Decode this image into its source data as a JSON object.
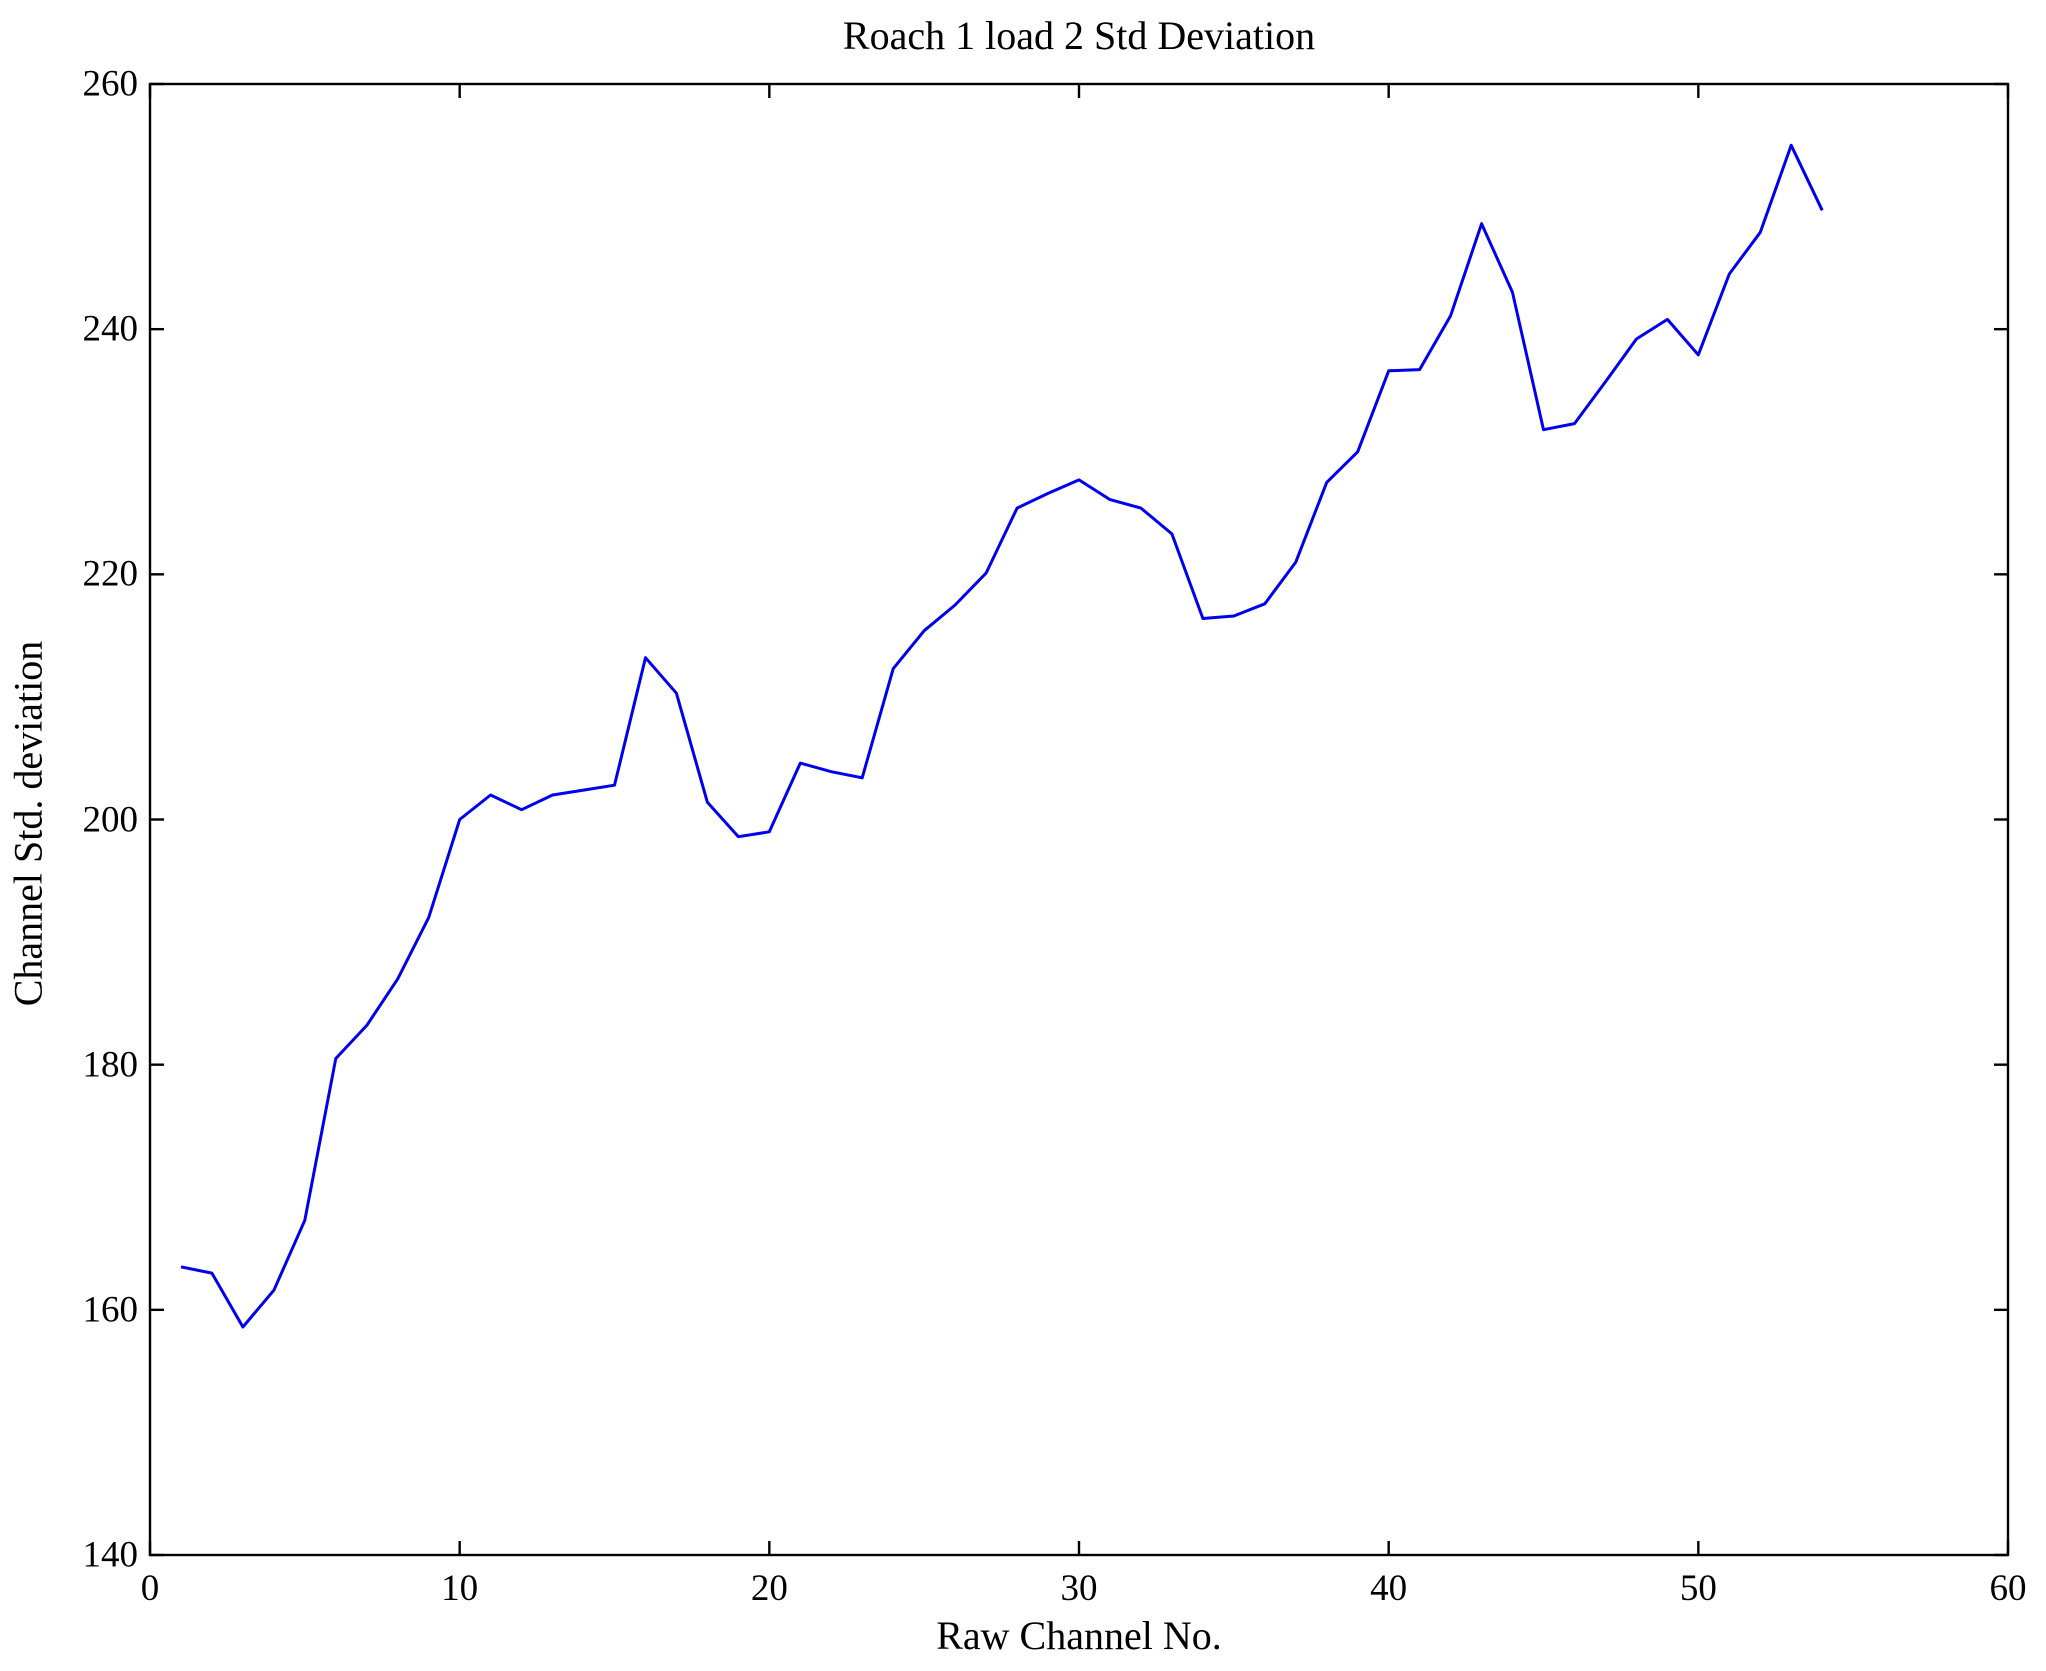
{
  "chart_data": {
    "type": "line",
    "title": "Roach 1 load 2 Std Deviation",
    "xlabel": "Raw Channel No.",
    "ylabel": "Channel Std. deviation",
    "xlim": [
      0,
      60
    ],
    "ylim": [
      140,
      260
    ],
    "xticks": [
      0,
      10,
      20,
      30,
      40,
      50,
      60
    ],
    "yticks": [
      140,
      160,
      180,
      200,
      220,
      240,
      260
    ],
    "grid": false,
    "legend": "none",
    "line_color": "#0000EE",
    "axis_color": "#000000",
    "series": [
      {
        "name": "Channel Std deviation",
        "x": [
          1,
          2,
          3,
          4,
          5,
          6,
          7,
          8,
          9,
          10,
          11,
          12,
          13,
          14,
          15,
          16,
          17,
          18,
          19,
          20,
          21,
          22,
          23,
          24,
          25,
          26,
          27,
          28,
          29,
          30,
          31,
          32,
          33,
          34,
          35,
          36,
          37,
          38,
          39,
          40,
          41,
          42,
          43,
          44,
          45,
          46,
          47,
          48,
          49,
          50,
          51,
          52,
          53,
          54
        ],
        "values": [
          163.5,
          163.0,
          158.6,
          161.6,
          167.3,
          180.5,
          183.2,
          187.0,
          192.0,
          200.0,
          202.0,
          200.8,
          202.0,
          202.4,
          202.8,
          213.2,
          210.3,
          201.4,
          198.6,
          199.0,
          204.6,
          203.9,
          203.4,
          212.3,
          215.4,
          217.5,
          220.1,
          225.4,
          226.6,
          227.7,
          226.1,
          225.4,
          223.3,
          216.4,
          216.6,
          217.6,
          221.0,
          227.5,
          230.0,
          236.6,
          236.7,
          241.1,
          248.6,
          243.0,
          231.8,
          232.3,
          235.7,
          239.2,
          240.8,
          237.9,
          244.5,
          247.9,
          255.0,
          249.7
        ]
      }
    ]
  }
}
